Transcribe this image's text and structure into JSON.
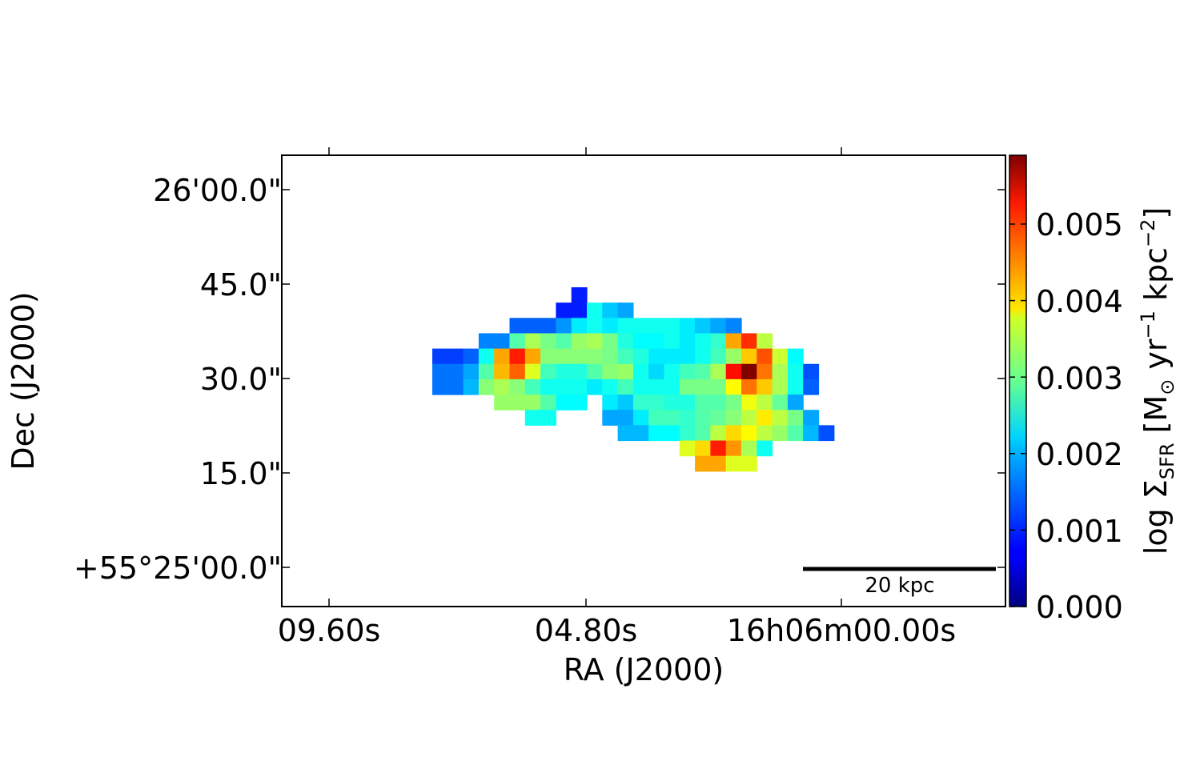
{
  "chart_data": {
    "type": "heatmap",
    "title": "",
    "xlabel": "RA (J2000)",
    "ylabel": "Dec (J2000)",
    "x_ticks": [
      "09.60s",
      "04.80s",
      "16h06m00.00s"
    ],
    "y_ticks": [
      "26'00.0\"",
      "45.0\"",
      "30.0\"",
      "15.0\"",
      "+55°25'00.0\""
    ],
    "colorbar": {
      "label": "log Σ_SFR [M☉ yr⁻¹ kpc⁻²]",
      "label_parts": {
        "a": "log Σ",
        "b": "SFR",
        "c": " [M",
        "d": "⊙",
        "e": " yr",
        "f": "−1",
        "g": " kpc",
        "h": "−2",
        "i": "]"
      },
      "colormap": "jet",
      "range": [
        0,
        0.0059
      ],
      "ticks": [
        "0.000",
        "0.001",
        "0.002",
        "0.003",
        "0.004",
        "0.005"
      ],
      "tick_values": [
        0.0,
        0.001,
        0.002,
        0.003,
        0.004,
        0.005
      ]
    },
    "scale_bar": {
      "label": "20 kpc"
    },
    "grid": false,
    "pixel_map": {
      "row_start": 0,
      "col_start": 0,
      "rows": [
        [
          9,
          [
            0.0009
          ]
        ],
        [
          8,
          [
            0.0009,
            0.0009,
            0.0023,
            0.0019,
            0.0017
          ]
        ],
        [
          5,
          [
            0.0013,
            0.0013,
            0.0013,
            0.0016,
            0.0021,
            0.0023,
            0.0021,
            0.0023,
            0.0023,
            0.0023,
            0.0023,
            0.0021,
            0.0019,
            0.0017,
            0.0015
          ]
        ],
        [
          3,
          [
            0.0015,
            0.0015,
            0.0027,
            0.0032,
            0.0029,
            0.0027,
            0.0031,
            0.0032,
            0.0029,
            0.0024,
            0.0022,
            0.0022,
            0.0023,
            0.0021,
            0.0023,
            0.0025,
            0.0042,
            0.0049,
            0.0033
          ]
        ],
        [
          0,
          [
            0.0011,
            0.0011,
            0.0013,
            0.0023,
            0.0042,
            0.005,
            0.0042,
            0.003,
            0.003,
            0.003,
            0.003,
            0.0029,
            0.0026,
            0.0024,
            0.0021,
            0.0021,
            0.0021,
            0.0023,
            0.0026,
            0.0031,
            0.004,
            0.0047,
            0.0034,
            0.0022
          ]
        ],
        [
          0,
          [
            0.0014,
            0.0014,
            0.0017,
            0.0027,
            0.0041,
            0.0046,
            0.0035,
            0.0026,
            0.0024,
            0.0024,
            0.0027,
            0.003,
            0.0031,
            0.0023,
            0.002,
            0.0023,
            0.0026,
            0.0027,
            0.0032,
            0.0051,
            0.0059,
            0.0045,
            0.0032,
            0.0023,
            0.0012
          ]
        ],
        [
          0,
          [
            0.0014,
            0.0014,
            0.0018,
            0.003,
            0.0032,
            0.003,
            0.0026,
            0.0023,
            0.0023,
            0.0023,
            0.0021,
            0.0023,
            0.0026,
            0.0023,
            0.0023,
            0.0023,
            0.0029,
            0.0029,
            0.0029,
            0.0037,
            0.0045,
            0.004,
            0.0032,
            0.0023,
            0.0013
          ]
        ],
        [
          4,
          [
            0.0031,
            0.0031,
            0.0031,
            0.0027,
            0.0022,
            0.0022,
            null,
            0.0021,
            0.0019,
            0.0025,
            0.0025,
            0.0024,
            0.0024,
            0.0027,
            0.0027,
            0.0029,
            0.0036,
            0.0033,
            0.0028,
            0.0017
          ]
        ],
        [
          6,
          [
            0.0023,
            0.0023,
            null,
            null,
            null,
            0.0017,
            0.0017,
            0.0021,
            0.0026,
            0.0026,
            0.0025,
            0.0027,
            0.0028,
            0.003,
            0.0033,
            0.0038,
            0.0033,
            0.0029,
            0.0017
          ]
        ],
        [
          12,
          [
            0.0018,
            0.0018,
            0.0022,
            0.0022,
            0.0025,
            0.0027,
            0.0033,
            0.0039,
            0.0037,
            0.0033,
            0.0031,
            0.0027,
            0.0018,
            0.0012
          ]
        ],
        [
          16,
          [
            0.0035,
            0.0039,
            0.005,
            0.0043,
            0.0032,
            0.0023
          ]
        ],
        [
          17,
          [
            0.0042,
            0.0042,
            0.0035,
            0.0035
          ]
        ]
      ]
    }
  },
  "colors": {
    "axis": "#000000",
    "background": "#ffffff"
  }
}
